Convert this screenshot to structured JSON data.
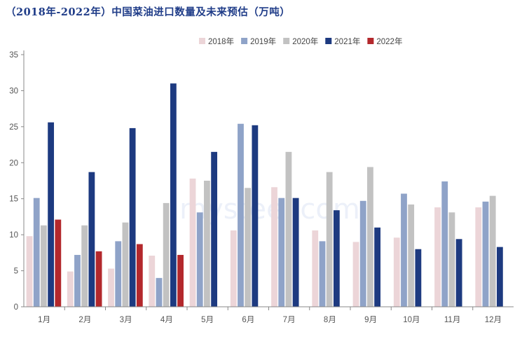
{
  "page_title": "（2018年-2022年）中国菜油进口数量及未来预估（万吨）",
  "watermark": "mysteel.com",
  "chart_data": {
    "type": "bar",
    "title": "（2018年-2022年）中国菜油进口数量及未来预估（万吨）",
    "xlabel": "",
    "ylabel": "",
    "ylim": [
      0,
      35
    ],
    "yticks": [
      0,
      5,
      10,
      15,
      20,
      25,
      30,
      35
    ],
    "grid": false,
    "legend_position": "top-right",
    "categories": [
      "1月",
      "2月",
      "3月",
      "4月",
      "5月",
      "6月",
      "7月",
      "8月",
      "9月",
      "10月",
      "11月",
      "12月"
    ],
    "series": [
      {
        "name": "2018年",
        "color": "#ecd5d8",
        "values": [
          9.8,
          4.9,
          5.3,
          7.1,
          17.8,
          10.6,
          16.6,
          10.6,
          9.0,
          9.6,
          13.8,
          13.8
        ]
      },
      {
        "name": "2019年",
        "color": "#8fa3c8",
        "values": [
          15.1,
          7.2,
          9.1,
          4.0,
          13.1,
          25.4,
          15.1,
          9.1,
          14.7,
          15.7,
          17.4,
          14.6
        ]
      },
      {
        "name": "2020年",
        "color": "#c2c2c2",
        "values": [
          11.3,
          11.3,
          11.7,
          14.4,
          17.5,
          16.5,
          21.5,
          18.7,
          19.4,
          14.2,
          13.1,
          15.4
        ]
      },
      {
        "name": "2021年",
        "color": "#1d3a80",
        "values": [
          25.6,
          18.7,
          24.8,
          31.0,
          21.5,
          25.2,
          15.1,
          13.4,
          11.0,
          8.0,
          9.4,
          8.3
        ]
      },
      {
        "name": "2022年",
        "color": "#b3282c",
        "values": [
          12.1,
          7.7,
          8.7,
          7.2,
          null,
          null,
          null,
          null,
          null,
          null,
          null,
          null
        ]
      }
    ]
  }
}
